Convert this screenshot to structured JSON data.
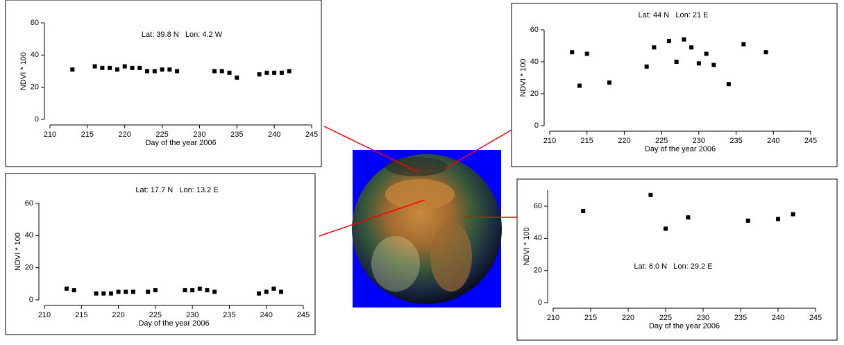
{
  "chart_data": [
    {
      "type": "scatter",
      "title": "Lat: 39.8 N   Lon: 4.2 W",
      "x_label": "Day of the year 2006",
      "y_label": "NDVI * 100",
      "color": "#000000",
      "xlim": [
        210,
        245
      ],
      "xticks": [
        210,
        215,
        220,
        225,
        230,
        235,
        240,
        245
      ],
      "ylim": [
        0,
        60
      ],
      "yticks": [
        0,
        20,
        40,
        60
      ],
      "x": [
        213,
        216,
        217,
        218,
        219,
        220,
        221,
        222,
        223,
        224,
        225,
        226,
        227,
        232,
        233,
        234,
        235,
        238,
        239,
        240,
        241,
        242
      ],
      "values": [
        31,
        33,
        32,
        32,
        31,
        33,
        32,
        32,
        30,
        30,
        31,
        31,
        30,
        30,
        30,
        29,
        26,
        28,
        29,
        29,
        29,
        30
      ]
    },
    {
      "type": "scatter",
      "title": "Lat: 17.7 N   Lon: 13.2 E",
      "x_label": "Day of the year 2006",
      "y_label": "NDVI * 100",
      "color": "#000000",
      "xlim": [
        210,
        245
      ],
      "xticks": [
        210,
        215,
        220,
        225,
        230,
        235,
        240,
        245
      ],
      "ylim": [
        0,
        60
      ],
      "yticks": [
        0,
        20,
        40,
        60
      ],
      "x": [
        213,
        214,
        217,
        218,
        219,
        220,
        221,
        222,
        224,
        225,
        229,
        230,
        231,
        232,
        233,
        239,
        240,
        241,
        242
      ],
      "values": [
        7,
        6,
        4,
        4,
        4,
        5,
        5,
        5,
        5,
        6,
        6,
        6,
        7,
        6,
        5,
        4,
        5,
        7,
        5
      ]
    },
    {
      "type": "scatter",
      "title": "Lat: 44 N   Lon: 21 E",
      "x_label": "Day of the year 2006",
      "y_label": "NDVI * 100",
      "color": "#000000",
      "xlim": [
        210,
        245
      ],
      "xticks": [
        210,
        215,
        220,
        225,
        230,
        235,
        240,
        245
      ],
      "ylim": [
        0,
        60
      ],
      "yticks": [
        0,
        20,
        40,
        60
      ],
      "x": [
        213,
        214,
        215,
        218,
        223,
        224,
        226,
        227,
        228,
        229,
        230,
        231,
        232,
        234,
        236,
        239
      ],
      "values": [
        46,
        25,
        45,
        27,
        37,
        49,
        53,
        40,
        54,
        49,
        39,
        45,
        38,
        26,
        51,
        46
      ]
    },
    {
      "type": "scatter",
      "title": "Lat: 6.0 N   Lon: 29.2 E",
      "x_label": "Day of the year 2006",
      "y_label": "NDVI * 100",
      "color": "#000000",
      "xlim": [
        210,
        245
      ],
      "xticks": [
        210,
        215,
        220,
        225,
        230,
        235,
        240,
        245
      ],
      "ylim": [
        0,
        70
      ],
      "yticks": [
        0,
        20,
        40,
        60
      ],
      "x": [
        214,
        223,
        225,
        228,
        236,
        240,
        242
      ],
      "values": [
        57,
        67,
        46,
        53,
        51,
        52,
        55
      ]
    }
  ]
}
